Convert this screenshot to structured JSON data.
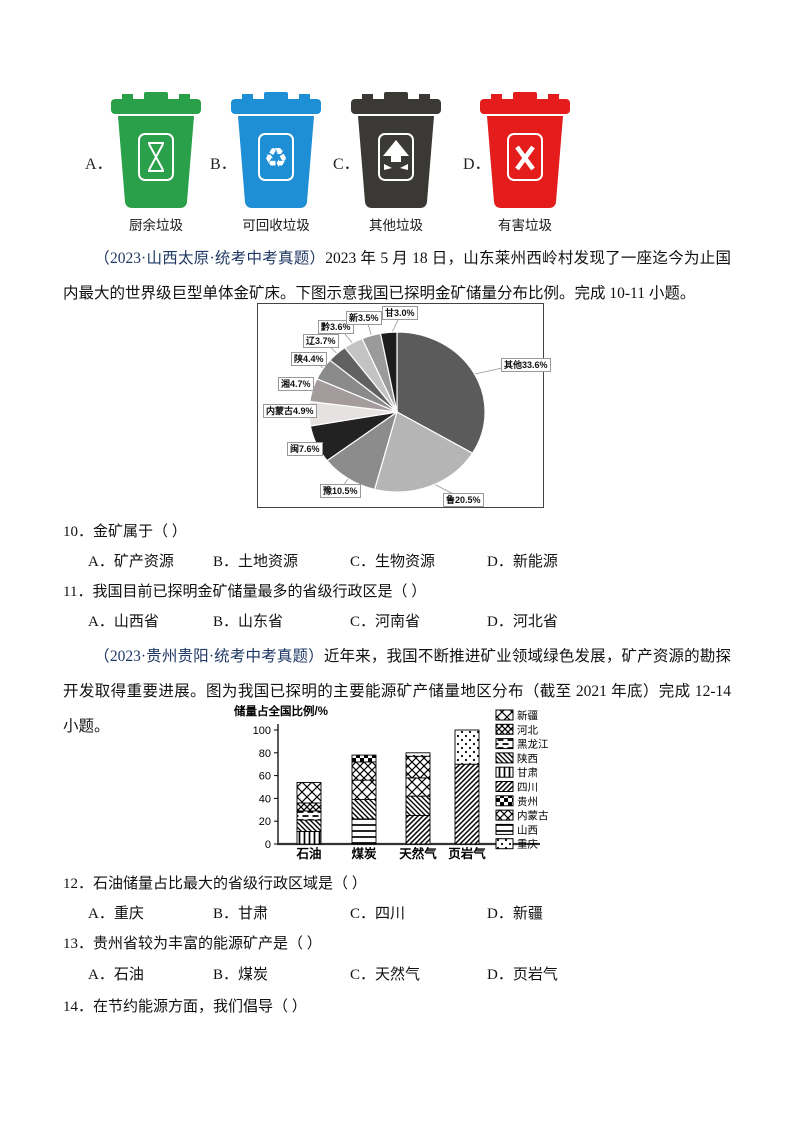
{
  "bins_section": {
    "options": [
      {
        "letter": "A．",
        "caption": "厨余垃圾",
        "color": "#2aa04a",
        "icon": "hourglass-icon"
      },
      {
        "letter": "B．",
        "caption": "可回收垃圾",
        "color": "#1e8fd5",
        "icon": "recycle-icon"
      },
      {
        "letter": "C．",
        "caption": "其他垃圾",
        "color": "#3b3936",
        "icon": "arrow-up-icon"
      },
      {
        "letter": "D．",
        "caption": "有害垃圾",
        "color": "#e51c1c",
        "icon": "cross-icon"
      }
    ]
  },
  "paragraph1": {
    "source": "（2023·山西太原·统考中考真题）",
    "text": "2023 年 5 月 18 日，山东莱州西岭村发现了一座迄今为止国内最大的世界级巨型单体金矿床。下图示意我国已探明金矿储量分布比例。完成 10-11 小题。"
  },
  "paragraph2": {
    "source": "（2023·贵州贵阳·统考中考真题）",
    "text": "近年来，我国不断推进矿业领域绿色发展，矿产资源的勘探开发取得重要进展。图为我国已探明的主要能源矿产储量地区分布（截至 2021 年底）完成 12-14 小题。"
  },
  "questions": [
    {
      "text": "10．金矿属于（  ）",
      "options": [
        "A．矿产资源",
        "B．土地资源",
        "C．生物资源",
        "D．新能源"
      ]
    },
    {
      "text": "11．我国目前已探明金矿储量最多的省级行政区是（  ）",
      "options": [
        "A．山西省",
        "B．山东省",
        "C．河南省",
        "D．河北省"
      ]
    },
    {
      "text": "12．石油储量占比最大的省级行政区域是（  ）",
      "options": [
        "A．重庆",
        "B．甘肃",
        "C．四川",
        "D．新疆"
      ]
    },
    {
      "text": "13．贵州省较为丰富的能源矿产是（  ）",
      "options": [
        "A．石油",
        "B．煤炭",
        "C．天然气",
        "D．页岩气"
      ]
    },
    {
      "text": "14．在节约能源方面，我们倡导（  ）",
      "options": []
    }
  ],
  "chart_data": [
    {
      "type": "pie",
      "description": "我国已探明金矿储量分布比例",
      "slices": [
        {
          "label": "其他",
          "value": 33.6,
          "display": "其他33.6%"
        },
        {
          "label": "鲁",
          "value": 20.5,
          "display": "鲁20.5%"
        },
        {
          "label": "豫",
          "value": 10.5,
          "display": "豫10.5%"
        },
        {
          "label": "闽",
          "value": 7.6,
          "display": "闽7.6%"
        },
        {
          "label": "内蒙古",
          "value": 4.9,
          "display": "内蒙古4.9%"
        },
        {
          "label": "湘",
          "value": 4.7,
          "display": "湘4.7%"
        },
        {
          "label": "陕",
          "value": 4.4,
          "display": "陕4.4%"
        },
        {
          "label": "辽",
          "value": 3.7,
          "display": "辽3.7%"
        },
        {
          "label": "黔",
          "value": 3.6,
          "display": "黔3.6%"
        },
        {
          "label": "新",
          "value": 3.5,
          "display": "新3.5%"
        },
        {
          "label": "甘",
          "value": 3.0,
          "display": "甘3.0%"
        }
      ],
      "colors": [
        "#5b5b5b",
        "#b5b5b5",
        "#8c8c8c",
        "#222222",
        "#e7e2e2",
        "#a49c9c",
        "#8a8a8a",
        "#616161",
        "#c3c3c3",
        "#9b9b9b",
        "#1d1d1d"
      ],
      "start_angle_deg": 0,
      "direction": "clockwise"
    },
    {
      "type": "stacked_bar",
      "ylabel": "储量占全国比例/%",
      "ylim": [
        0,
        100
      ],
      "yticks": [
        0,
        20,
        40,
        60,
        80,
        100
      ],
      "categories": [
        "石油",
        "煤炭",
        "天然气",
        "页岩气"
      ],
      "legend": [
        "新疆",
        "河北",
        "黑龙江",
        "陕西",
        "甘肃",
        "四川",
        "贵州",
        "内蒙古",
        "山西",
        "重庆"
      ],
      "legend_position": "right",
      "bars": [
        {
          "category": "石油",
          "segments": [
            {
              "name": "甘肃",
              "value": 11
            },
            {
              "name": "陕西",
              "value": 10
            },
            {
              "name": "黑龙江",
              "value": 8
            },
            {
              "name": "河北",
              "value": 7
            },
            {
              "name": "新疆",
              "value": 18
            }
          ]
        },
        {
          "category": "煤炭",
          "segments": [
            {
              "name": "山西",
              "value": 22
            },
            {
              "name": "陕西",
              "value": 17
            },
            {
              "name": "新疆",
              "value": 17
            },
            {
              "name": "内蒙古",
              "value": 16
            },
            {
              "name": "贵州",
              "value": 6
            }
          ]
        },
        {
          "category": "天然气",
          "segments": [
            {
              "name": "四川",
              "value": 25
            },
            {
              "name": "陕西",
              "value": 17
            },
            {
              "name": "新疆",
              "value": 16
            },
            {
              "name": "内蒙古",
              "value": 19
            },
            {
              "name": "重庆",
              "value": 3
            }
          ]
        },
        {
          "category": "页岩气",
          "segments": [
            {
              "name": "四川",
              "value": 70
            },
            {
              "name": "重庆",
              "value": 30
            }
          ]
        }
      ]
    }
  ]
}
